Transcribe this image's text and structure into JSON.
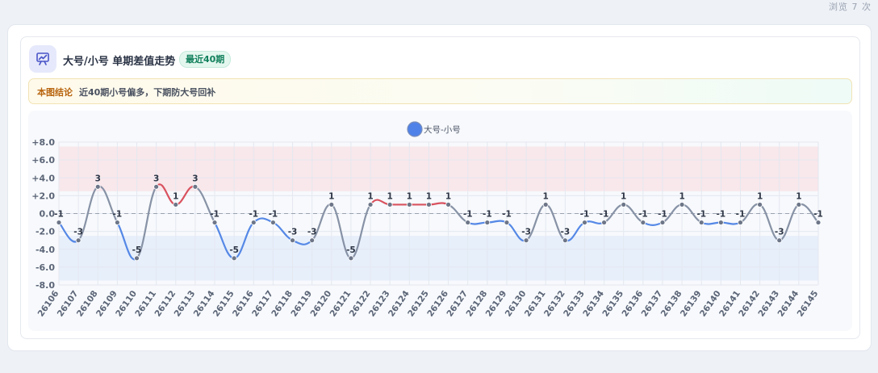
{
  "page": {
    "views_text": "浏览 7 次"
  },
  "card": {
    "title": "大号/小号 单期差值走势",
    "badge": "最近40期",
    "conclusion_label": "本图结论",
    "conclusion_text": "近40期小号偏多，下期防大号回补"
  },
  "colors": {
    "series_gray": "#8792a6",
    "up_red": "#d9525f",
    "down_blue": "#5588e6",
    "legend_dot": "#4f82e8",
    "band_red": "#f8e6ea",
    "band_blue": "#e6eefb"
  },
  "chart_data": {
    "type": "line",
    "title": "",
    "xlabel": "",
    "ylabel": "",
    "legend": {
      "position": "top-center",
      "entries": [
        "大号-小号"
      ]
    },
    "categories": [
      "26106",
      "26107",
      "26108",
      "26109",
      "26110",
      "26111",
      "26112",
      "26113",
      "26114",
      "26115",
      "26116",
      "26117",
      "26118",
      "26119",
      "26120",
      "26121",
      "26122",
      "26123",
      "26124",
      "26125",
      "26126",
      "26127",
      "26128",
      "26129",
      "26130",
      "26131",
      "26132",
      "26133",
      "26134",
      "26135",
      "26136",
      "26137",
      "26138",
      "26139",
      "26140",
      "26141",
      "26142",
      "26143",
      "26144",
      "26145"
    ],
    "series": [
      {
        "name": "大号-小号",
        "values": [
          -1,
          -3,
          3,
          -1,
          -5,
          3,
          1,
          3,
          -1,
          -5,
          -1,
          -1,
          -3,
          -3,
          1,
          -5,
          1,
          1,
          1,
          1,
          1,
          -1,
          -1,
          -1,
          -3,
          1,
          -3,
          -1,
          -1,
          1,
          -1,
          -1,
          1,
          -1,
          -1,
          -1,
          1,
          -3,
          1,
          -1
        ]
      }
    ],
    "ylim": [
      -8,
      8
    ],
    "yticks": [
      8,
      6,
      4,
      2,
      0,
      -2,
      -4,
      -6,
      -8
    ],
    "ytick_labels": [
      "+8.0",
      "+6.0",
      "+4.0",
      "+2.0",
      "0.0",
      "-2.0",
      "-4.0",
      "-6.0",
      "-8.0"
    ],
    "bands": [
      {
        "from": 2.5,
        "to": 7.5,
        "meaning": "high"
      },
      {
        "from": -7.5,
        "to": -2.5,
        "meaning": "low"
      }
    ],
    "reference_line": 0,
    "grid": true
  }
}
